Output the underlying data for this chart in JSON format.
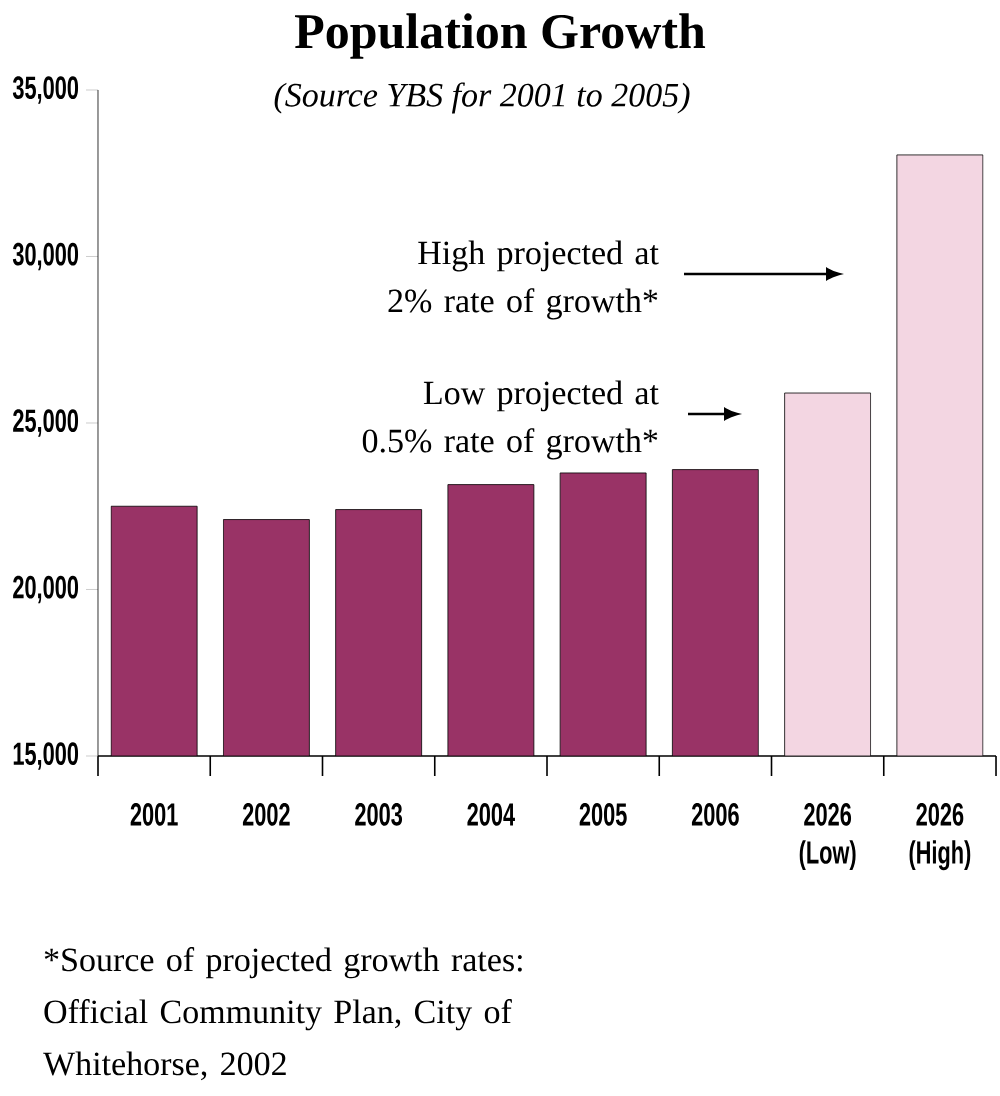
{
  "chart_data": {
    "type": "bar",
    "title": "Population Growth",
    "subtitle": "(Source YBS for 2001 to 2005)",
    "categories": [
      "2001",
      "2002",
      "2003",
      "2004",
      "2005",
      "2006",
      "2026 (Low)",
      "2026 (High)"
    ],
    "values": [
      22500,
      22100,
      22400,
      23150,
      23500,
      23600,
      25900,
      33050
    ],
    "colors": [
      "#993366",
      "#993366",
      "#993366",
      "#993366",
      "#993366",
      "#993366",
      "#f3d6e2",
      "#f3d6e2"
    ],
    "ylim": [
      15000,
      35000
    ],
    "yticks": [
      {
        "value": 15000,
        "label": "15,000"
      },
      {
        "value": 20000,
        "label": "20,000"
      },
      {
        "value": 25000,
        "label": "25,000"
      },
      {
        "value": 30000,
        "label": "30,000"
      },
      {
        "value": 35000,
        "label": "35,000"
      }
    ],
    "annotations": [
      "High projected at 2% rate of growth*",
      "Low projected at 0.5% rate of growth*",
      "*Source of projected growth rates: Official Community Plan, City of Whitehorse, 2002"
    ]
  }
}
